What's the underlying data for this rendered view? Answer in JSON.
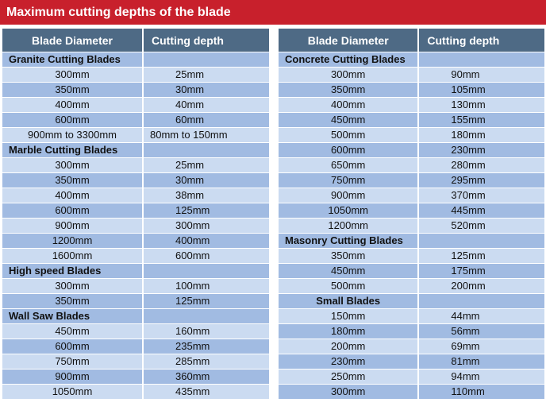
{
  "title": "Maximum cutting depths of the blade",
  "headers": {
    "diameter": "Blade Diameter",
    "depth": "Cutting depth"
  },
  "colors": {
    "title_bar": "#c8202c",
    "header": "#4e6a85",
    "row_light": "#cbdbf1",
    "row_mid": "#a1bbe2"
  },
  "left_rows": [
    {
      "type": "section",
      "name": "Granite Cutting Blades"
    },
    {
      "type": "data",
      "diameter": "300mm",
      "depth": "25mm"
    },
    {
      "type": "data",
      "diameter": "350mm",
      "depth": "30mm"
    },
    {
      "type": "data",
      "diameter": "400mm",
      "depth": "40mm"
    },
    {
      "type": "data",
      "diameter": "600mm",
      "depth": "60mm"
    },
    {
      "type": "data",
      "diameter": "900mm to 3300mm",
      "depth": "80mm to 150mm",
      "wide": true
    },
    {
      "type": "section",
      "name": "Marble Cutting Blades"
    },
    {
      "type": "data",
      "diameter": "300mm",
      "depth": "25mm"
    },
    {
      "type": "data",
      "diameter": "350mm",
      "depth": "30mm"
    },
    {
      "type": "data",
      "diameter": "400mm",
      "depth": "38mm"
    },
    {
      "type": "data",
      "diameter": "600mm",
      "depth": "125mm"
    },
    {
      "type": "data",
      "diameter": "900mm",
      "depth": "300mm"
    },
    {
      "type": "data",
      "diameter": "1200mm",
      "depth": "400mm"
    },
    {
      "type": "data",
      "diameter": "1600mm",
      "depth": "600mm"
    },
    {
      "type": "section",
      "name": "High speed Blades"
    },
    {
      "type": "data",
      "diameter": "300mm",
      "depth": "100mm"
    },
    {
      "type": "data",
      "diameter": "350mm",
      "depth": "125mm"
    },
    {
      "type": "section",
      "name": "Wall Saw Blades"
    },
    {
      "type": "data",
      "diameter": "450mm",
      "depth": "160mm"
    },
    {
      "type": "data",
      "diameter": "600mm",
      "depth": "235mm"
    },
    {
      "type": "data",
      "diameter": "750mm",
      "depth": "285mm"
    },
    {
      "type": "data",
      "diameter": "900mm",
      "depth": "360mm"
    },
    {
      "type": "data",
      "diameter": "1050mm",
      "depth": "435mm"
    }
  ],
  "right_rows": [
    {
      "type": "section",
      "name": "Concrete Cutting Blades"
    },
    {
      "type": "data",
      "diameter": "300mm",
      "depth": "90mm"
    },
    {
      "type": "data",
      "diameter": "350mm",
      "depth": "105mm"
    },
    {
      "type": "data",
      "diameter": "400mm",
      "depth": "130mm"
    },
    {
      "type": "data",
      "diameter": "450mm",
      "depth": "155mm"
    },
    {
      "type": "data",
      "diameter": "500mm",
      "depth": "180mm"
    },
    {
      "type": "data",
      "diameter": "600mm",
      "depth": "230mm"
    },
    {
      "type": "data",
      "diameter": "650mm",
      "depth": "280mm"
    },
    {
      "type": "data",
      "diameter": "750mm",
      "depth": "295mm"
    },
    {
      "type": "data",
      "diameter": "900mm",
      "depth": "370mm"
    },
    {
      "type": "data",
      "diameter": "1050mm",
      "depth": "445mm"
    },
    {
      "type": "data",
      "diameter": "1200mm",
      "depth": "520mm"
    },
    {
      "type": "section",
      "name": "Masonry Cutting Blades"
    },
    {
      "type": "data",
      "diameter": "350mm",
      "depth": "125mm"
    },
    {
      "type": "data",
      "diameter": "450mm",
      "depth": "175mm"
    },
    {
      "type": "data",
      "diameter": "500mm",
      "depth": "200mm"
    },
    {
      "type": "section",
      "name": "Small Blades",
      "centered": true
    },
    {
      "type": "data",
      "diameter": "150mm",
      "depth": "44mm"
    },
    {
      "type": "data",
      "diameter": "180mm",
      "depth": "56mm"
    },
    {
      "type": "data",
      "diameter": "200mm",
      "depth": "69mm"
    },
    {
      "type": "data",
      "diameter": "230mm",
      "depth": "81mm"
    },
    {
      "type": "data",
      "diameter": "250mm",
      "depth": "94mm"
    },
    {
      "type": "data",
      "diameter": "300mm",
      "depth": "110mm"
    }
  ]
}
